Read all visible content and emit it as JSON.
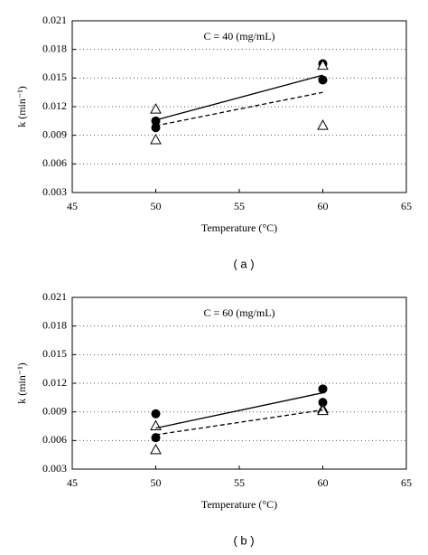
{
  "chart_data": [
    {
      "type": "scatter",
      "annotation": "C = 40 (mg/mL)",
      "x_label": "Temperature (°C)",
      "y_label": "k (min⁻¹)",
      "caption": "( a )",
      "xlim": [
        45,
        65
      ],
      "xticks": [
        45,
        50,
        55,
        60,
        65
      ],
      "ylim": [
        0.003,
        0.021
      ],
      "yticks": [
        0.003,
        0.006,
        0.009,
        0.012,
        0.015,
        0.018,
        0.021
      ],
      "grid": true,
      "series": [
        {
          "marker": "circle",
          "color": "#000000",
          "x": [
            50,
            50,
            60,
            60
          ],
          "values": [
            0.0105,
            0.0098,
            0.0165,
            0.0148
          ]
        },
        {
          "marker": "triangle",
          "color": "#000000",
          "x": [
            50,
            50,
            60,
            60
          ],
          "values": [
            0.0117,
            0.0085,
            0.0163,
            0.01
          ]
        },
        {
          "style": "solid",
          "color": "#000000",
          "x": [
            50,
            60
          ],
          "values": [
            0.0106,
            0.0153
          ]
        },
        {
          "style": "dashed",
          "color": "#000000",
          "x": [
            50,
            60
          ],
          "values": [
            0.01,
            0.0135
          ]
        }
      ]
    },
    {
      "type": "scatter",
      "annotation": "C = 60 (mg/mL)",
      "x_label": "Temperature (°C)",
      "y_label": "k (min⁻¹)",
      "caption": "( b )",
      "xlim": [
        45,
        65
      ],
      "xticks": [
        45,
        50,
        55,
        60,
        65
      ],
      "ylim": [
        0.003,
        0.021
      ],
      "yticks": [
        0.003,
        0.006,
        0.009,
        0.012,
        0.015,
        0.018,
        0.021
      ],
      "grid": true,
      "series": [
        {
          "marker": "circle",
          "color": "#000000",
          "x": [
            50,
            50,
            60,
            60
          ],
          "values": [
            0.0088,
            0.0063,
            0.0114,
            0.01
          ]
        },
        {
          "marker": "triangle",
          "color": "#000000",
          "x": [
            50,
            50,
            60,
            60
          ],
          "values": [
            0.0075,
            0.005,
            0.0093,
            0.0091
          ]
        },
        {
          "style": "solid",
          "color": "#000000",
          "x": [
            50,
            60
          ],
          "values": [
            0.0073,
            0.011
          ]
        },
        {
          "style": "dashed",
          "color": "#000000",
          "x": [
            50,
            60
          ],
          "values": [
            0.0066,
            0.0092
          ]
        }
      ]
    }
  ]
}
